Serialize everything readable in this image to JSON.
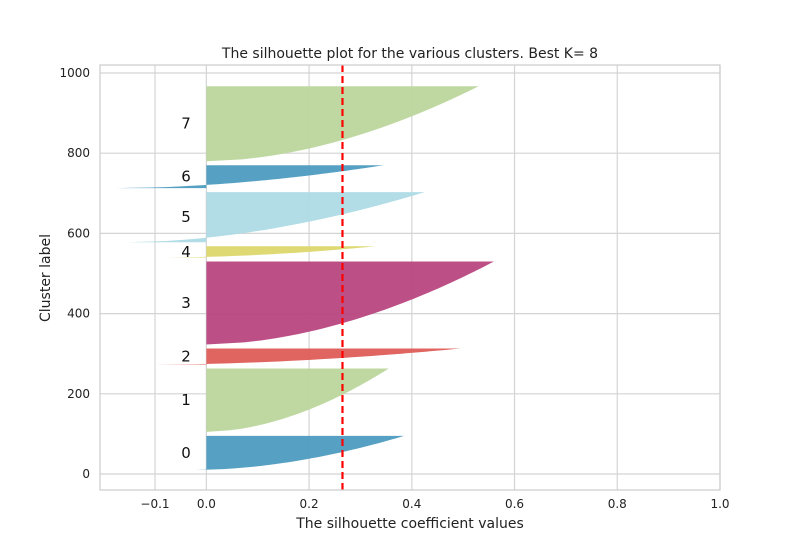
{
  "chart_data": {
    "type": "area",
    "title": "The silhouette plot for the various clusters. Best K= 8",
    "xlabel": "The silhouette coefficient values",
    "ylabel": "Cluster label",
    "xlim": [
      -0.1,
      1.0
    ],
    "ylim": [
      0,
      1000
    ],
    "xticks": [
      -0.1,
      0.0,
      0.2,
      0.4,
      0.6,
      0.8,
      1.0
    ],
    "xtick_labels": [
      "−0.1",
      "0.0",
      "0.2",
      "0.4",
      "0.6",
      "0.8",
      "1.0"
    ],
    "yticks": [
      0,
      200,
      400,
      600,
      800,
      1000
    ],
    "ytick_labels": [
      "0",
      "200",
      "400",
      "600",
      "800",
      "1000"
    ],
    "grid": true,
    "average_silhouette": 0.265,
    "average_line_color": "#ff0000",
    "clusters": [
      {
        "label": "0",
        "y_start": 10,
        "y_end": 95,
        "max": 0.385,
        "min": -0.02,
        "color": "#4c9bc0"
      },
      {
        "label": "1",
        "y_start": 105,
        "y_end": 263,
        "max": 0.355,
        "min": 0.0,
        "color": "#bcd69c"
      },
      {
        "label": "2",
        "y_start": 273,
        "y_end": 313,
        "max": 0.495,
        "min": -0.1,
        "color": "#de5c57"
      },
      {
        "label": "3",
        "y_start": 323,
        "y_end": 530,
        "max": 0.56,
        "min": 0.0,
        "color": "#b8467e"
      },
      {
        "label": "4",
        "y_start": 540,
        "y_end": 568,
        "max": 0.33,
        "min": -0.08,
        "color": "#dcd76a"
      },
      {
        "label": "5",
        "y_start": 578,
        "y_end": 703,
        "max": 0.425,
        "min": -0.155,
        "color": "#aedbe6"
      },
      {
        "label": "6",
        "y_start": 713,
        "y_end": 770,
        "max": 0.345,
        "min": -0.175,
        "color": "#4c9bc0"
      },
      {
        "label": "7",
        "y_start": 780,
        "y_end": 967,
        "max": 0.53,
        "min": 0.0,
        "color": "#bcd69c"
      }
    ]
  }
}
